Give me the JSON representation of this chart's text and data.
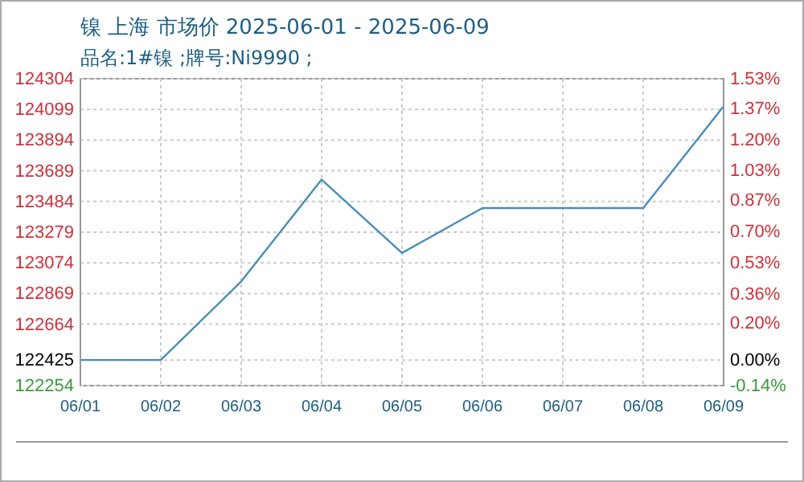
{
  "chart_data": {
    "type": "line",
    "title": "镍 上海 市场价 2025-06-01 - 2025-06-09",
    "subtitle": "品名:1#镍 ;牌号:Ni9990 ;",
    "categories": [
      "06/01",
      "06/02",
      "06/03",
      "06/04",
      "06/05",
      "06/06",
      "06/07",
      "06/08",
      "06/09"
    ],
    "series": [
      {
        "color": "#4a8db8",
        "values": [
          122425,
          122425,
          122950,
          123630,
          123140,
          123440,
          123440,
          123440,
          124120
        ]
      }
    ],
    "ylim": [
      122254,
      124304
    ],
    "yticks": [
      122254,
      122425,
      122664,
      122869,
      123074,
      123279,
      123484,
      123689,
      123894,
      124099,
      124304
    ],
    "y2lim": [
      -0.14,
      1.53
    ],
    "y2ticks": [
      {
        "value": -0.14,
        "label": "-0.14%"
      },
      {
        "value": 0,
        "label": "0.00%"
      },
      {
        "value": 0.2,
        "label": "0.20%"
      },
      {
        "value": 0.36,
        "label": "0.36%"
      },
      {
        "value": 0.53,
        "label": "0.53%"
      },
      {
        "value": 0.7,
        "label": "0.70%"
      },
      {
        "value": 0.87,
        "label": "0.87%"
      },
      {
        "value": 1.03,
        "label": "1.03%"
      },
      {
        "value": 1.2,
        "label": "1.20%"
      },
      {
        "value": 1.37,
        "label": "1.37%"
      },
      {
        "value": 1.53,
        "label": "1.53%"
      }
    ],
    "grid": true,
    "marker": "none",
    "line_style": "solid"
  }
}
